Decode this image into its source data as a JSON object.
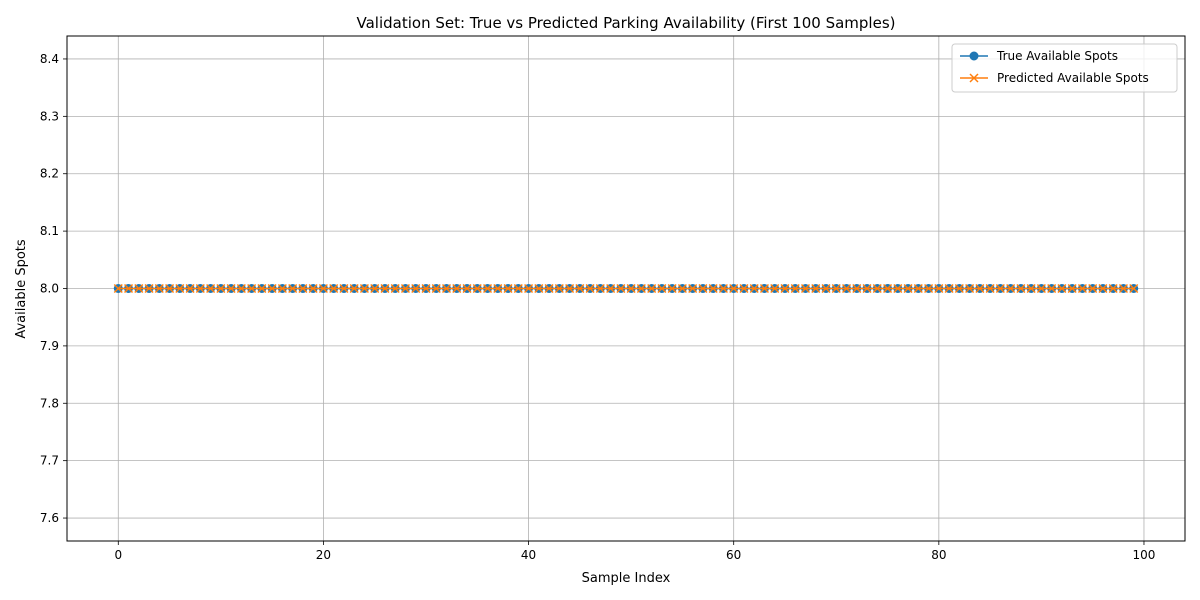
{
  "chart_data": {
    "type": "line",
    "title": "Validation Set: True vs Predicted Parking Availability (First 100 Samples)",
    "xlabel": "Sample Index",
    "ylabel": "Available Spots",
    "xlim": [
      -5,
      104
    ],
    "ylim": [
      7.56,
      8.44
    ],
    "xticks": [
      0,
      20,
      40,
      60,
      80,
      100
    ],
    "yticks": [
      7.6,
      7.7,
      7.8,
      7.9,
      8.0,
      8.1,
      8.2,
      8.3,
      8.4
    ],
    "ytick_labels": [
      "7.6",
      "7.7",
      "7.8",
      "7.9",
      "8.0",
      "8.1",
      "8.2",
      "8.3",
      "8.4"
    ],
    "grid": true,
    "legend_position": "top-right",
    "x_start": 0,
    "x_count": 100,
    "series": [
      {
        "name": "True Available Spots",
        "color": "#1f77b4",
        "marker": "circle",
        "values": [
          8,
          8,
          8,
          8,
          8,
          8,
          8,
          8,
          8,
          8,
          8,
          8,
          8,
          8,
          8,
          8,
          8,
          8,
          8,
          8,
          8,
          8,
          8,
          8,
          8,
          8,
          8,
          8,
          8,
          8,
          8,
          8,
          8,
          8,
          8,
          8,
          8,
          8,
          8,
          8,
          8,
          8,
          8,
          8,
          8,
          8,
          8,
          8,
          8,
          8,
          8,
          8,
          8,
          8,
          8,
          8,
          8,
          8,
          8,
          8,
          8,
          8,
          8,
          8,
          8,
          8,
          8,
          8,
          8,
          8,
          8,
          8,
          8,
          8,
          8,
          8,
          8,
          8,
          8,
          8,
          8,
          8,
          8,
          8,
          8,
          8,
          8,
          8,
          8,
          8,
          8,
          8,
          8,
          8,
          8,
          8,
          8,
          8,
          8,
          8
        ]
      },
      {
        "name": "Predicted Available Spots",
        "color": "#ff7f0e",
        "marker": "x",
        "values": [
          8,
          8,
          8,
          8,
          8,
          8,
          8,
          8,
          8,
          8,
          8,
          8,
          8,
          8,
          8,
          8,
          8,
          8,
          8,
          8,
          8,
          8,
          8,
          8,
          8,
          8,
          8,
          8,
          8,
          8,
          8,
          8,
          8,
          8,
          8,
          8,
          8,
          8,
          8,
          8,
          8,
          8,
          8,
          8,
          8,
          8,
          8,
          8,
          8,
          8,
          8,
          8,
          8,
          8,
          8,
          8,
          8,
          8,
          8,
          8,
          8,
          8,
          8,
          8,
          8,
          8,
          8,
          8,
          8,
          8,
          8,
          8,
          8,
          8,
          8,
          8,
          8,
          8,
          8,
          8,
          8,
          8,
          8,
          8,
          8,
          8,
          8,
          8,
          8,
          8,
          8,
          8,
          8,
          8,
          8,
          8,
          8,
          8,
          8,
          8
        ]
      }
    ]
  }
}
